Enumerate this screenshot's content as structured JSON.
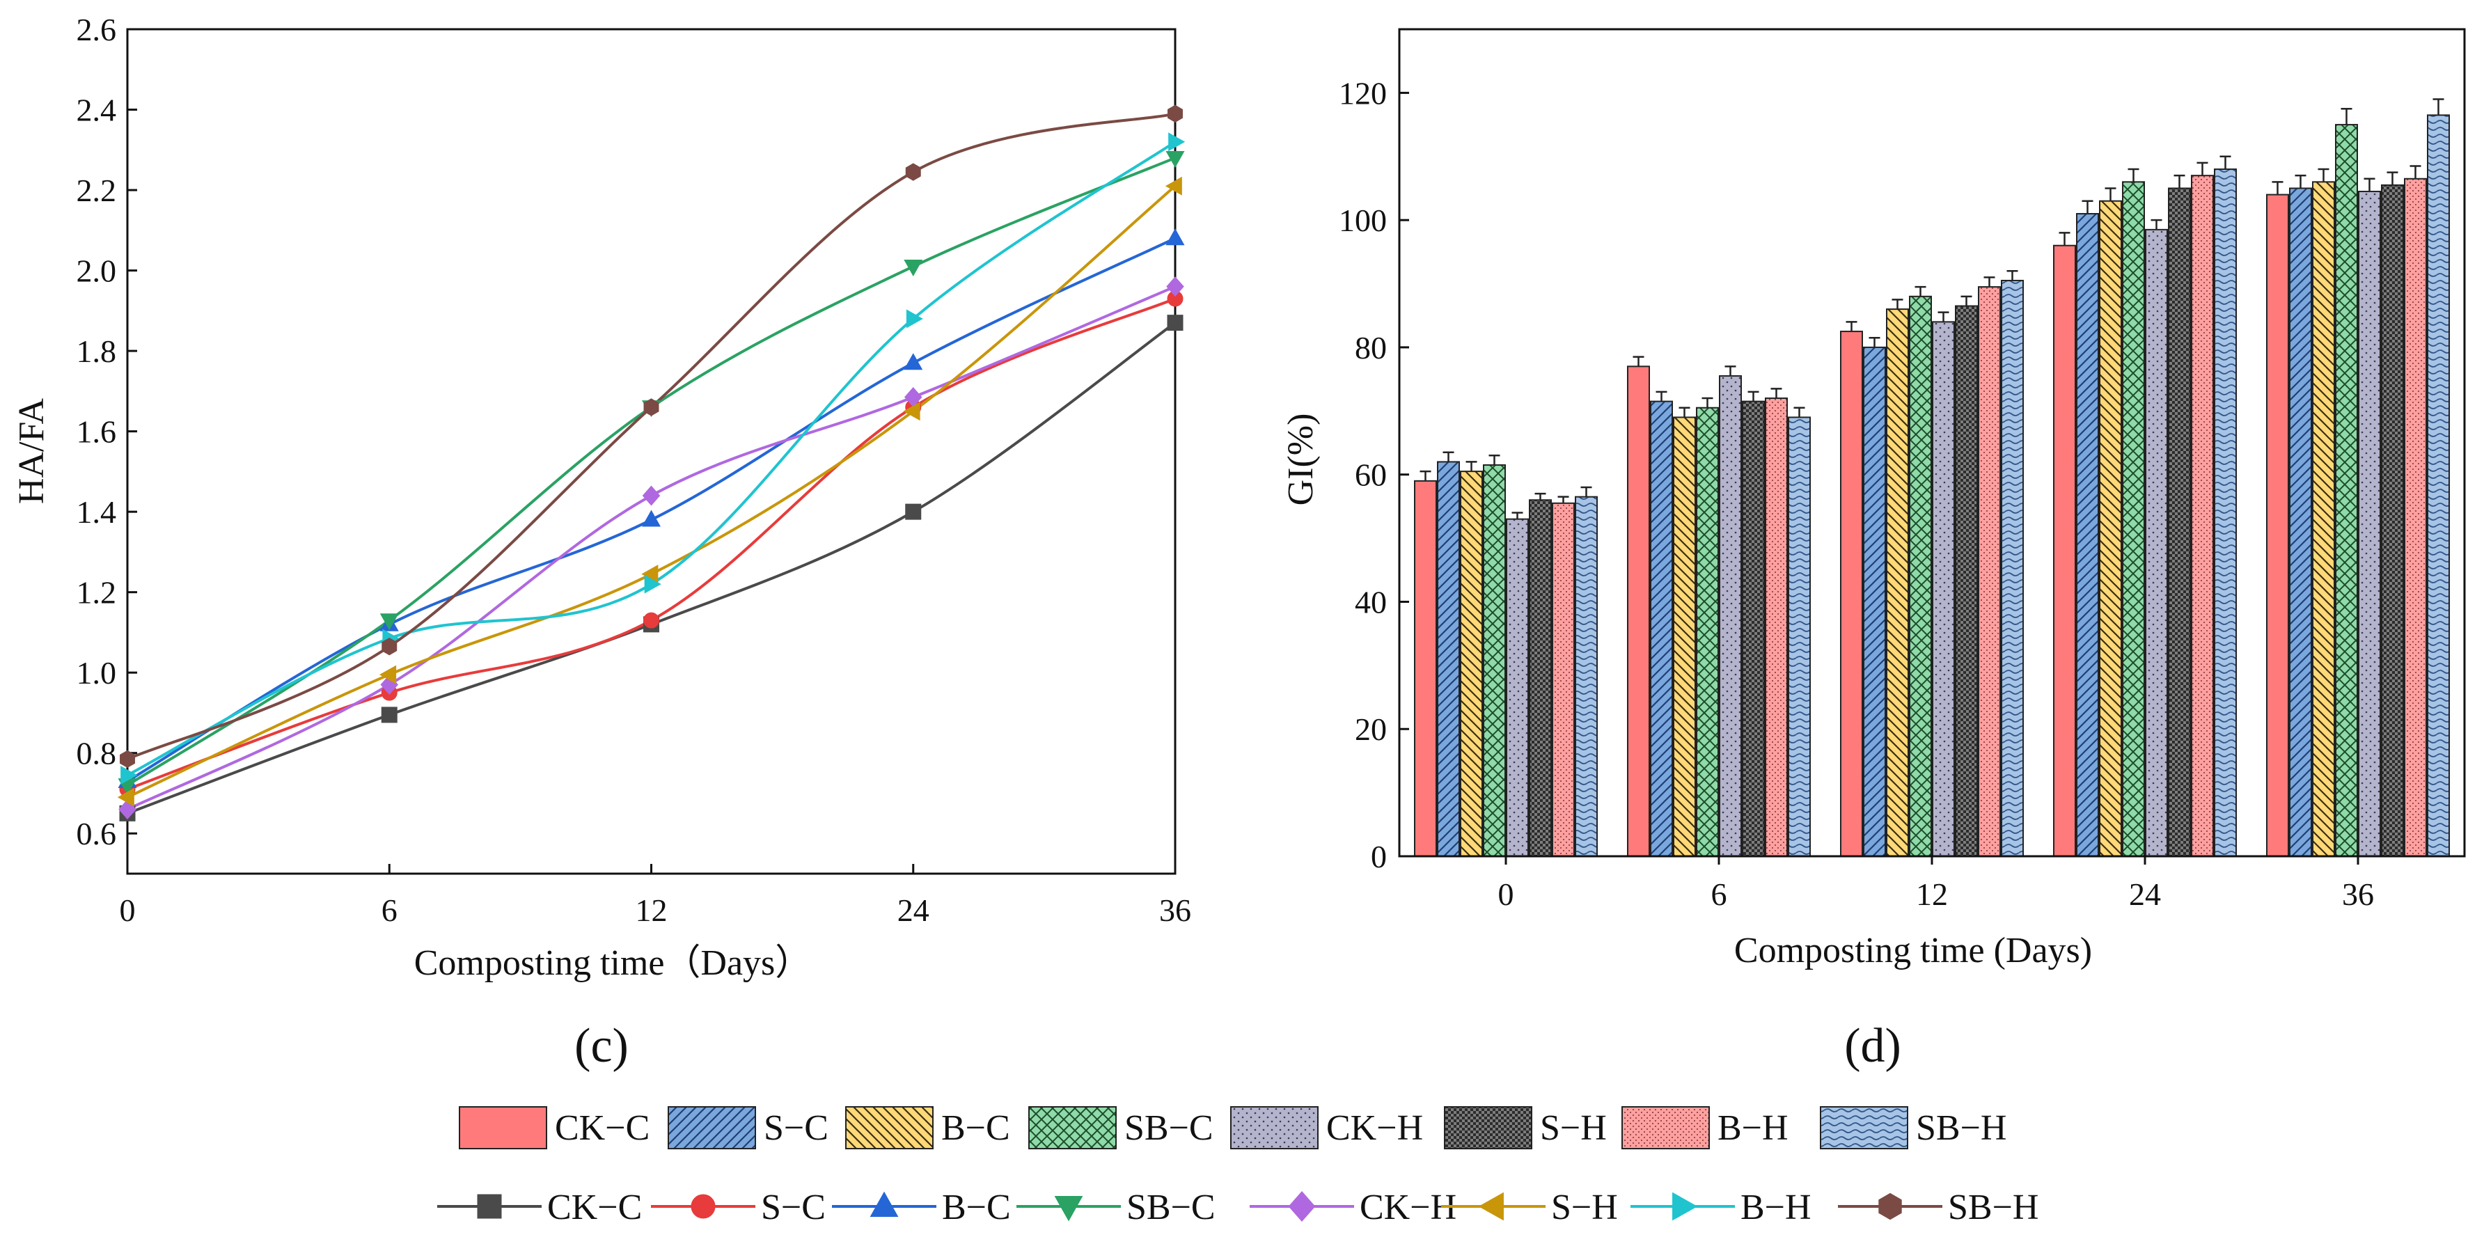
{
  "chart_data": [
    {
      "type": "line",
      "panel": "c",
      "panel_label": "(c)",
      "xlabel": "Composting time（Days）",
      "ylabel": "HA/FA",
      "categories": [
        "0",
        "6",
        "12",
        "24",
        "36"
      ],
      "ylim": [
        0.5,
        2.6
      ],
      "yticks": [
        "0.6",
        "0.8",
        "1.0",
        "1.2",
        "1.4",
        "1.6",
        "1.8",
        "2.0",
        "2.2",
        "2.4",
        "2.6"
      ],
      "grid": false,
      "series": [
        {
          "name": "CK−C",
          "marker": "square",
          "color": "#4a4a4a",
          "values": [
            0.65,
            0.895,
            1.12,
            1.4,
            1.87
          ]
        },
        {
          "name": "S−C",
          "marker": "circle",
          "color": "#e83b3b",
          "values": [
            0.71,
            0.95,
            1.13,
            1.66,
            1.93
          ]
        },
        {
          "name": "B−C",
          "marker": "triangle-up",
          "color": "#2466d6",
          "values": [
            0.73,
            1.12,
            1.38,
            1.77,
            2.08
          ]
        },
        {
          "name": "SB−C",
          "marker": "triangle-down",
          "color": "#2aa263",
          "values": [
            0.72,
            1.13,
            1.66,
            2.01,
            2.28
          ]
        },
        {
          "name": "CK−H",
          "marker": "diamond",
          "color": "#b068e0",
          "values": [
            0.66,
            0.97,
            1.44,
            1.685,
            1.96
          ]
        },
        {
          "name": "S−H",
          "marker": "triangle-left",
          "color": "#c9960a",
          "values": [
            0.69,
            0.995,
            1.245,
            1.65,
            2.21
          ]
        },
        {
          "name": "B−H",
          "marker": "triangle-right",
          "color": "#1fc4cf",
          "values": [
            0.745,
            1.085,
            1.22,
            1.88,
            2.32
          ]
        },
        {
          "name": "SB−H",
          "marker": "hexagon",
          "color": "#7b4a44",
          "values": [
            0.785,
            1.065,
            1.66,
            2.245,
            2.39
          ]
        }
      ]
    },
    {
      "type": "bar",
      "panel": "d",
      "panel_label": "(d)",
      "xlabel": "Composting time (Days)",
      "ylabel": "GI(%)",
      "categories": [
        "0",
        "6",
        "12",
        "24",
        "36"
      ],
      "ylim": [
        0,
        130
      ],
      "yticks": [
        "0",
        "20",
        "40",
        "60",
        "80",
        "100",
        "120"
      ],
      "grid": false,
      "series": [
        {
          "name": "CK−C",
          "pattern": "solid",
          "color": "#ff7b7b",
          "values": [
            59,
            77,
            82.5,
            96,
            104
          ],
          "errors": [
            1.5,
            1.5,
            1.5,
            2,
            2
          ]
        },
        {
          "name": "S−C",
          "pattern": "diag-forward",
          "color": "#7aa7dd",
          "values": [
            62,
            71.5,
            80,
            101,
            105
          ],
          "errors": [
            1.5,
            1.5,
            1.5,
            2,
            2
          ]
        },
        {
          "name": "B−C",
          "pattern": "diag-backward",
          "color": "#ffd978",
          "values": [
            60.5,
            69,
            86,
            103,
            106
          ],
          "errors": [
            1.5,
            1.5,
            1.5,
            2,
            2
          ]
        },
        {
          "name": "SB−C",
          "pattern": "crosshatch",
          "color": "#8fdaa8",
          "values": [
            61.5,
            70.5,
            88,
            106,
            115
          ],
          "errors": [
            1.5,
            1.5,
            1.5,
            2,
            2.5
          ]
        },
        {
          "name": "CK−H",
          "pattern": "dots",
          "color": "#b4b4cc",
          "values": [
            53,
            75.5,
            84,
            98.5,
            104.5
          ],
          "errors": [
            1,
            1.5,
            1.5,
            1.5,
            2
          ]
        },
        {
          "name": "S−H",
          "pattern": "checker",
          "color": "#8c8c8c",
          "values": [
            56,
            71.5,
            86.5,
            105,
            105.5
          ],
          "errors": [
            1,
            1.5,
            1.5,
            2,
            2
          ]
        },
        {
          "name": "B−H",
          "pattern": "fine-dots",
          "color": "#ffa0a0",
          "values": [
            55.5,
            72,
            89.5,
            107,
            106.5
          ],
          "errors": [
            1,
            1.5,
            1.5,
            2,
            2
          ]
        },
        {
          "name": "SB−H",
          "pattern": "wavy",
          "color": "#a7c4e6",
          "values": [
            56.5,
            69,
            90.5,
            108,
            116.5
          ],
          "errors": [
            1.5,
            1.5,
            1.5,
            2,
            2.5
          ]
        }
      ]
    }
  ],
  "legend": {
    "bar_items": [
      "CK−C",
      "S−C",
      "B−C",
      "SB−C",
      "CK−H",
      "S−H",
      "B−H",
      "SB−H"
    ],
    "line_items": [
      "CK−C",
      "S−C",
      "B−C",
      "SB−C",
      "CK−H",
      "S−H",
      "B−H",
      "SB−H"
    ],
    "placement": "bottom-center"
  }
}
